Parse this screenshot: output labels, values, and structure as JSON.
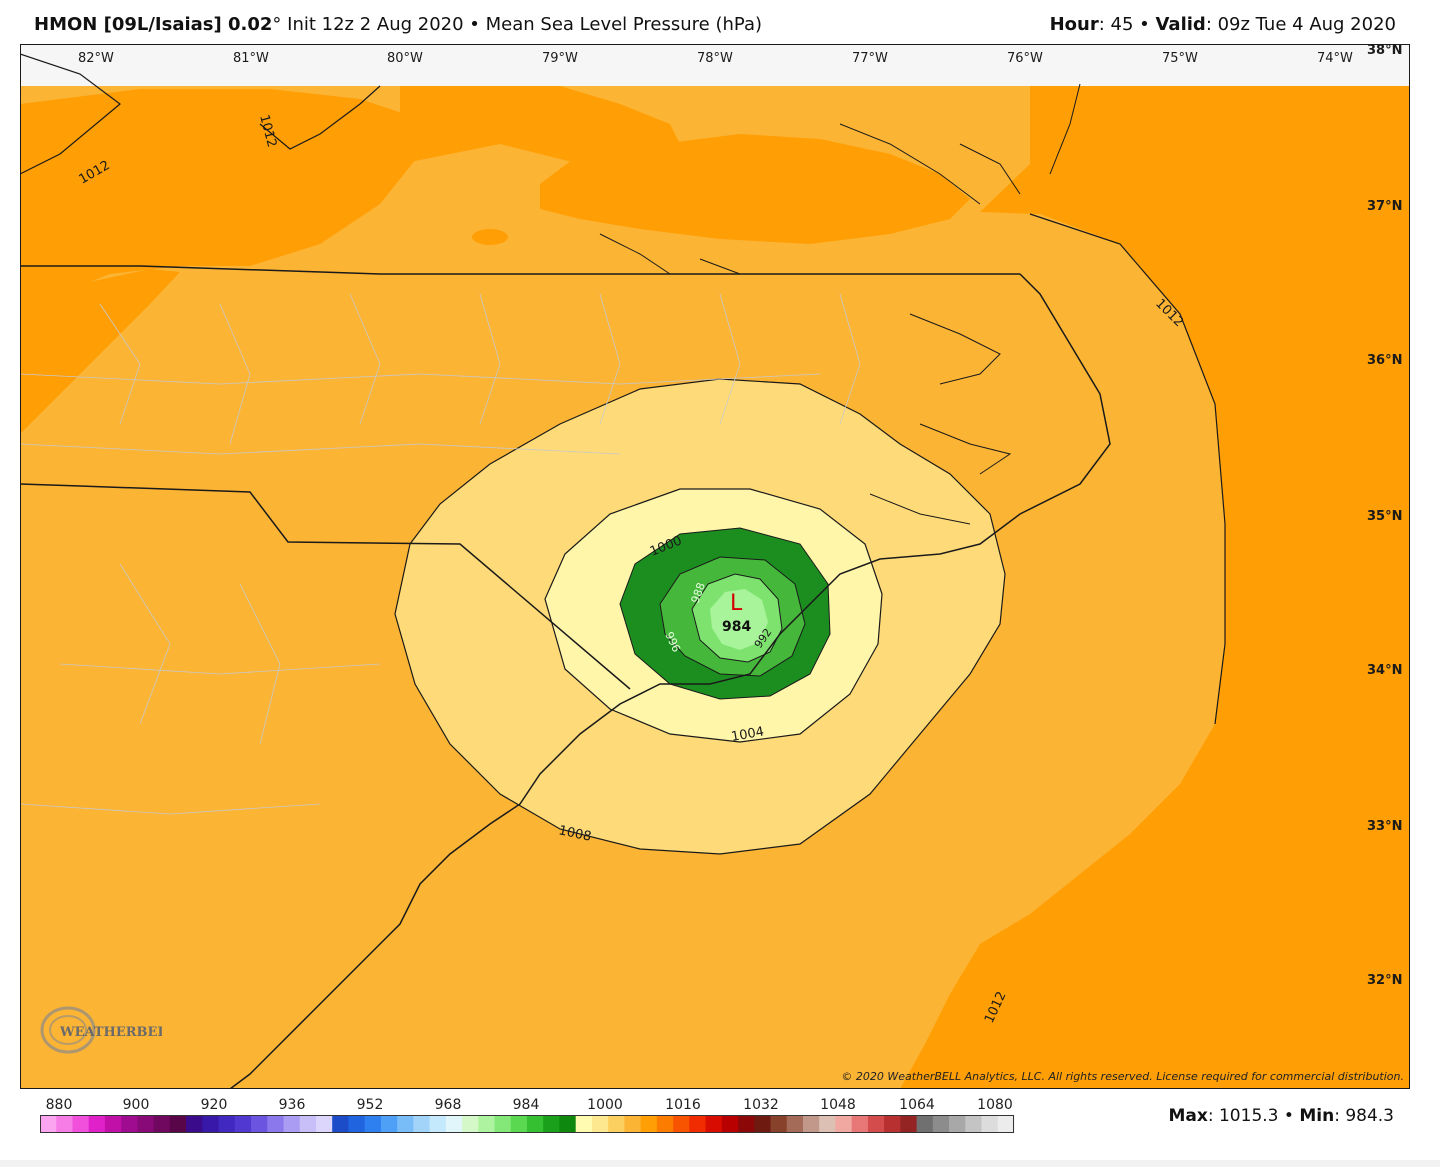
{
  "header": {
    "model": "HMON [09L/Isaias] 0.02",
    "degree": "°",
    "init": " Init 12z 2 Aug 2020",
    "sep": " • ",
    "field": "Mean Sea Level Pressure (hPa)",
    "hour_label": "Hour",
    "hour_value": ": 45",
    "valid_label": "Valid",
    "valid_value": ": 09z Tue 4 Aug 2020"
  },
  "map": {
    "lon_labels": [
      "82°W",
      "81°W",
      "80°W",
      "79°W",
      "78°W",
      "77°W",
      "76°W",
      "75°W",
      "74°W"
    ],
    "lat_labels": [
      "38°N",
      "37°N",
      "36°N",
      "35°N",
      "34°N",
      "33°N",
      "32°N"
    ],
    "contour_labels": [
      "1012",
      "1012",
      "1012",
      "1012",
      "1008",
      "1004",
      "1000",
      "996",
      "992",
      "988",
      "984"
    ],
    "low_symbol": "L",
    "low_value": "984",
    "colors": {
      "c1012": "#ff9e05",
      "c1008": "#fcb434",
      "c1004": "#fedb78",
      "c1000": "#fff6aa",
      "c996": "#1c8e20",
      "c992": "#45b83c",
      "c988": "#7de36e",
      "c984": "#a8f49a",
      "border": "#1a1a1a",
      "county": "#c9c9c9",
      "low_color": "#d40000"
    }
  },
  "legend": {
    "labels": [
      "880",
      "900",
      "920",
      "936",
      "952",
      "968",
      "984",
      "1000",
      "1016",
      "1032",
      "1048",
      "1064",
      "1080"
    ],
    "colors": [
      "#fba4f0",
      "#f67ce6",
      "#f050dc",
      "#e020c8",
      "#c010a8",
      "#a00c90",
      "#880a78",
      "#700860",
      "#580648",
      "#3a0c8c",
      "#3818a8",
      "#4028c0",
      "#5038d0",
      "#6a54e0",
      "#8a78ec",
      "#aa9cf2",
      "#c8bef8",
      "#dcd6fc",
      "#1c4cc8",
      "#2064e0",
      "#2e80f0",
      "#4ea0f6",
      "#78bcf8",
      "#a2d4fa",
      "#c4e8fc",
      "#e0f6fa",
      "#d4f8c8",
      "#aef4a0",
      "#84e878",
      "#5ad850",
      "#34c030",
      "#1aa01a",
      "#0e880e",
      "#fffbb0",
      "#fde890",
      "#fcd060",
      "#fcb434",
      "#ff9e05",
      "#fc7c00",
      "#f85400",
      "#f02c00",
      "#d80c00",
      "#b80000",
      "#8c0808",
      "#6e1a10",
      "#88422c",
      "#a46c58",
      "#c2988a",
      "#dcc0b4",
      "#f0a8a0",
      "#e87878",
      "#d44c4c",
      "#b83030",
      "#942424",
      "#707070",
      "#8c8c8c",
      "#a8a8a8",
      "#c4c4c4",
      "#dcdcdc",
      "#ececec"
    ]
  },
  "stats": {
    "max_label": "Max",
    "max_value": ": 1015.3",
    "min_label": "Min",
    "min_value": ": 984.3",
    "sep": " • "
  },
  "copyright": "© 2020 WeatherBELL Analytics, LLC. All rights reserved. License required for commercial distribution.",
  "logo_text": "WEATHERBELL"
}
